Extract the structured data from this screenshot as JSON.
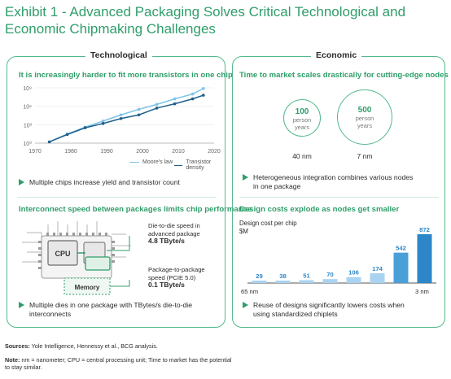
{
  "title_line1": "Exhibit 1 - Advanced Packaging Solves Critical Technological and",
  "title_line2": "Economic Chipmaking Challenges",
  "tech": {
    "label": "Technological",
    "chart_title": "It is increasingly harder to fit more transistors in one chip",
    "bullet1": "Multiple chips increase yield and transistor count",
    "section2_title": "Interconnect speed between packages limits chip performance",
    "cpu_label": "CPU",
    "memory_label": "Memory",
    "d2d_line1": "Die-to-die speed in",
    "d2d_line2": "advanced package",
    "d2d_value": "4.8 TByte/s",
    "p2p_line1": "Package-to-package",
    "p2p_line2": "speed (PCIE 5.0)",
    "p2p_value": "0.1 TByte/s",
    "bullet2_line1": "Multiple dies in one package with TBytes/s die-to-die",
    "bullet2_line2": "interconnects"
  },
  "econ": {
    "label": "Economic",
    "section1_title": "Time to market scales drastically for cutting-edge nodes",
    "circle1_value": "100",
    "circle1_unit1": "person",
    "circle1_unit2": "years",
    "circle1_node": "40 nm",
    "circle2_value": "500",
    "circle2_unit1": "person",
    "circle2_unit2": "years",
    "circle2_node": "7 nm",
    "bullet1_line1": "Heterogeneous integration combines various nodes",
    "bullet1_line2": "in one package",
    "section2_title": "Design costs explode as nodes get smaller",
    "chart_ylabel1": "Design cost per chip",
    "chart_ylabel2": "$M",
    "bar_left_label": "65 nm",
    "bar_right_label": "3 nm",
    "bullet2_line1": "Reuse of designs significantly lowers costs when",
    "bullet2_line2": "using standardized chiplets"
  },
  "footer": {
    "sources_label": "Sources:",
    "sources_text": " Yole Intelligence, Hennessy et al., BCG analysis.",
    "note_label": "Note:",
    "note_text": " nm = nanometer; CPU = central processing unit; Time to market has the potential",
    "note_line2": "to stay similar."
  },
  "colors": {
    "accent": "#2f9e6a",
    "series_moore": "#7cc3e8",
    "series_density": "#1f5f8b",
    "bar": "#2c86c8"
  },
  "chart_data": [
    {
      "type": "line",
      "title": "It is increasingly harder to fit more transistors in one chip",
      "y_scale": "log",
      "y_ticks": [
        "10⁰",
        "10³",
        "10⁶",
        "10⁹"
      ],
      "y_tick_values": [
        1,
        1000,
        1000000,
        1000000000
      ],
      "x_ticks": [
        1970,
        1980,
        1990,
        2000,
        2010,
        2020
      ],
      "xlim": [
        1970,
        2020
      ],
      "ylim_exp": [
        0,
        9
      ],
      "legend_placement": "bottom-right",
      "series": [
        {
          "name": "Moore's law",
          "x": [
            1974,
            1979,
            1984,
            1989,
            1994,
            1999,
            2004,
            2009,
            2014,
            2017
          ],
          "log10_y": [
            0.2,
            1.5,
            2.6,
            3.6,
            4.6,
            5.5,
            6.3,
            7.2,
            8.0,
            8.9
          ]
        },
        {
          "name": "Transistor density",
          "x": [
            1974,
            1979,
            1984,
            1989,
            1994,
            1999,
            2004,
            2009,
            2014,
            2017
          ],
          "log10_y": [
            0.2,
            1.4,
            2.5,
            3.2,
            4.0,
            4.6,
            5.7,
            6.4,
            7.2,
            7.8
          ]
        }
      ]
    },
    {
      "type": "bar",
      "title": "Design costs explode as nodes get smaller",
      "ylabel": "Design cost per chip $M",
      "categories": [
        "65 nm",
        "",
        "",
        "",
        "",
        "",
        "",
        "3 nm"
      ],
      "values": [
        29,
        38,
        51,
        70,
        106,
        174,
        542,
        872
      ],
      "value_labels": [
        "29",
        "38",
        "51",
        "70",
        "106",
        "174",
        "542",
        "872"
      ],
      "ylim": [
        0,
        900
      ]
    }
  ]
}
